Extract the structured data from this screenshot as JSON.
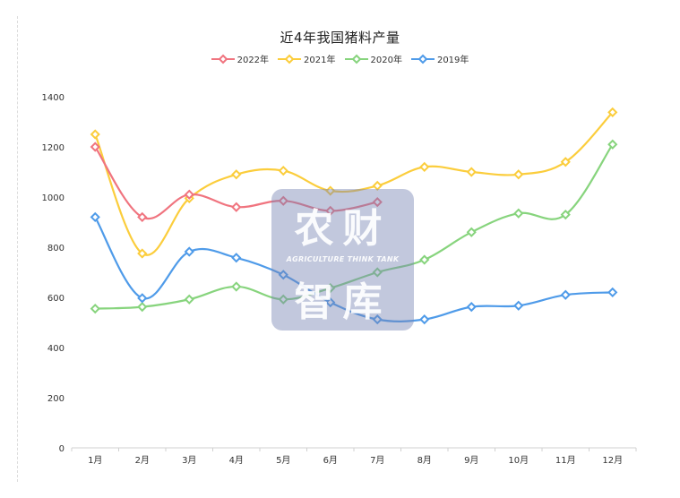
{
  "chart_data": {
    "type": "line",
    "title": "近4年我国猪料产量",
    "xlabel": "",
    "ylabel": "",
    "categories": [
      "1月",
      "2月",
      "3月",
      "4月",
      "5月",
      "6月",
      "7月",
      "8月",
      "9月",
      "10月",
      "11月",
      "12月"
    ],
    "ylim": [
      0,
      1400
    ],
    "yticks": [
      0,
      200,
      400,
      600,
      800,
      1000,
      1200,
      1400
    ],
    "grid": false,
    "legend_position": "top",
    "series": [
      {
        "name": "2022年",
        "color": "#f0747f",
        "values": [
          1200,
          920,
          1010,
          960,
          985,
          945,
          980,
          null,
          null,
          null,
          null,
          null
        ]
      },
      {
        "name": "2021年",
        "color": "#fbcd3c",
        "values": [
          1250,
          775,
          995,
          1090,
          1105,
          1025,
          1045,
          1120,
          1100,
          1090,
          1140,
          1338
        ]
      },
      {
        "name": "2020年",
        "color": "#87d47d",
        "values": [
          555,
          562,
          592,
          643,
          592,
          637,
          700,
          750,
          860,
          935,
          930,
          1210
        ]
      },
      {
        "name": "2019年",
        "color": "#4f9be9",
        "values": [
          920,
          597,
          782,
          758,
          690,
          580,
          512,
          512,
          562,
          567,
          610,
          620
        ]
      }
    ]
  },
  "watermark": {
    "line1": "农财",
    "line2": "AGRICULTURE THINK TANK",
    "line3": "智库"
  }
}
